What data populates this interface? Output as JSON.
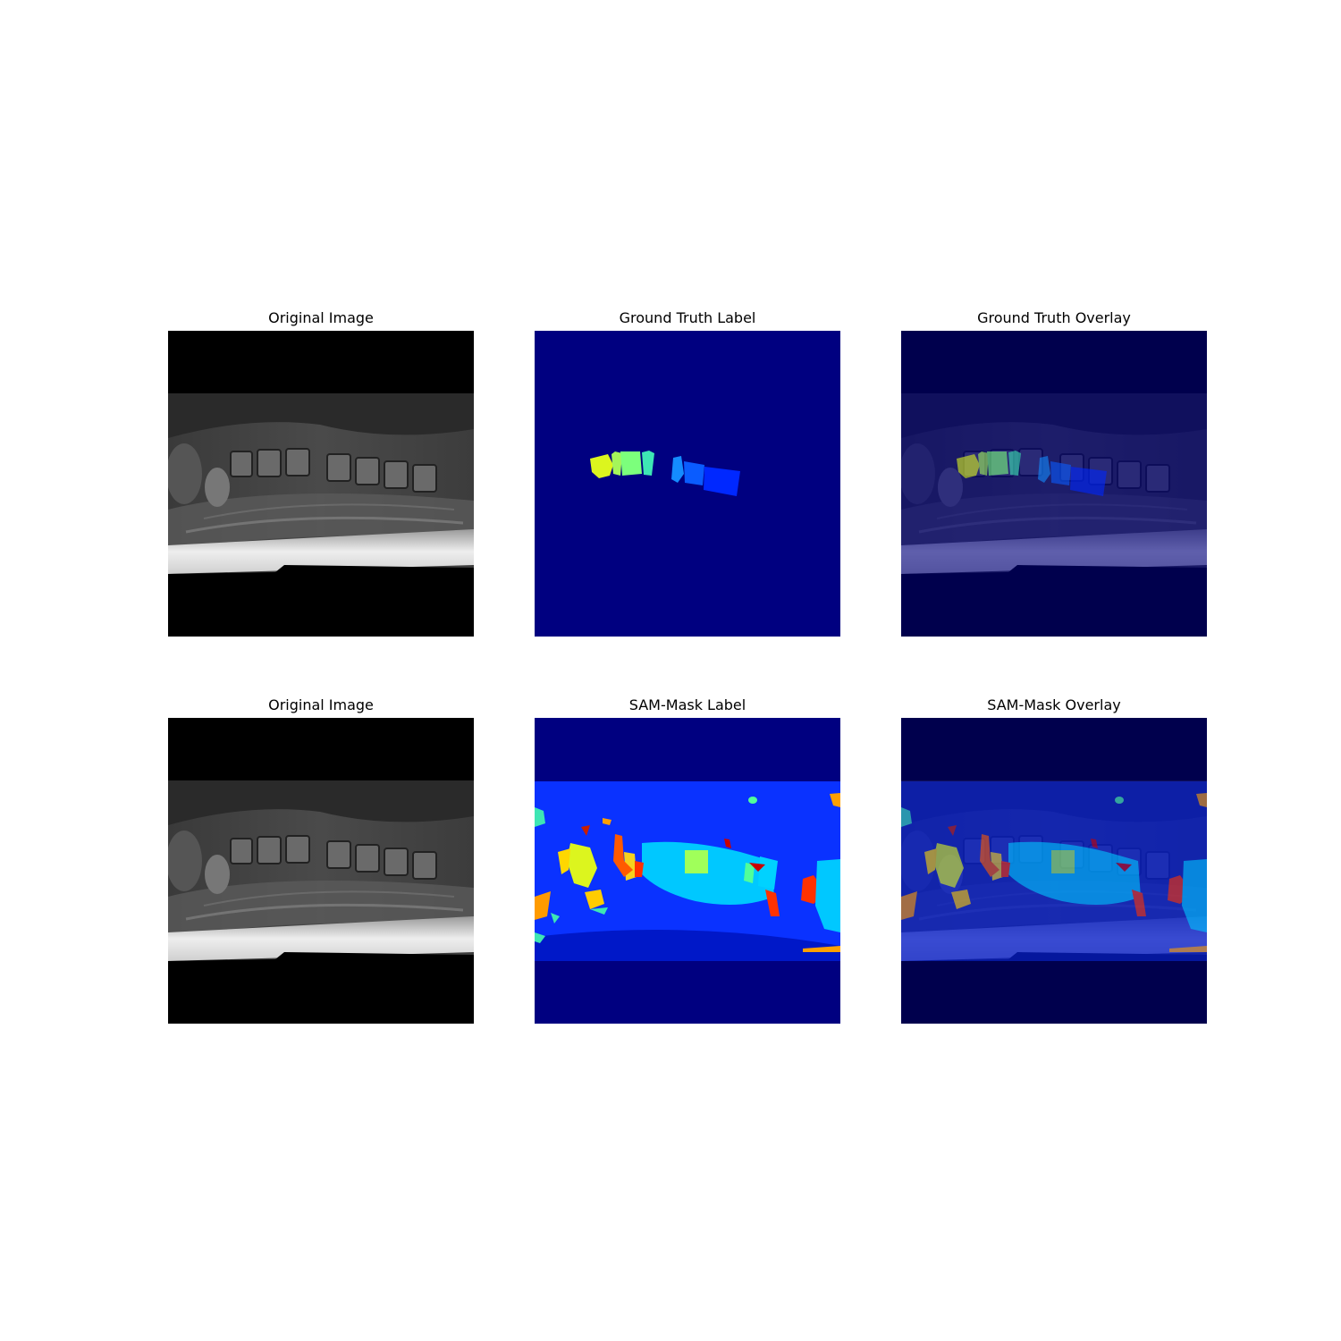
{
  "figure": {
    "panels": [
      {
        "id": "orig-top",
        "title": "Original Image"
      },
      {
        "id": "gt-label",
        "title": "Ground Truth Label"
      },
      {
        "id": "gt-overlay",
        "title": "Ground Truth Overlay"
      },
      {
        "id": "orig-bottom",
        "title": "Original Image"
      },
      {
        "id": "sam-label",
        "title": "SAM-Mask Label"
      },
      {
        "id": "sam-overlay",
        "title": "SAM-Mask Overlay"
      }
    ]
  },
  "colors": {
    "background": "#000080",
    "sam_region": "#0a32ff",
    "overlay_tint": "#000050",
    "black": "#000000"
  }
}
